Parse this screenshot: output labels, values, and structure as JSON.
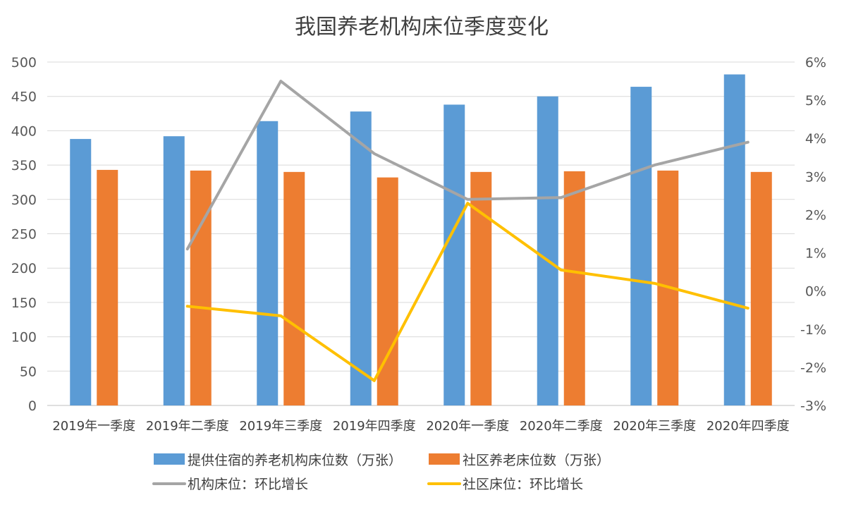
{
  "chart_data": {
    "type": "bar",
    "title": "我国养老机构床位季度变化",
    "categories": [
      "2019年一季度",
      "2019年二季度",
      "2019年三季度",
      "2019年四季度",
      "2020年一季度",
      "2020年二季度",
      "2020年三季度",
      "2020年四季度"
    ],
    "series": [
      {
        "name": "提供住宿的养老机构床位数（万张）",
        "type": "bar",
        "axis": "left",
        "color": "#5B9BD5",
        "values": [
          388,
          392,
          414,
          428,
          438,
          450,
          464,
          482
        ]
      },
      {
        "name": "社区养老床位数（万张）",
        "type": "bar",
        "axis": "left",
        "color": "#ED7D31",
        "values": [
          343,
          342,
          340,
          332,
          340,
          341,
          342,
          340
        ]
      },
      {
        "name": "机构床位：环比增长",
        "type": "line",
        "axis": "right",
        "color": "#A5A5A5",
        "values": [
          null,
          1.1,
          5.5,
          3.6,
          2.4,
          2.45,
          3.3,
          3.9
        ]
      },
      {
        "name": "社区床位：环比增长",
        "type": "line",
        "axis": "right",
        "color": "#FFC000",
        "values": [
          null,
          -0.4,
          -0.65,
          -2.35,
          2.3,
          0.55,
          0.2,
          -0.45
        ]
      }
    ],
    "y_left": {
      "min": 0,
      "max": 500,
      "step": 50,
      "ticks": [
        "0",
        "50",
        "100",
        "150",
        "200",
        "250",
        "300",
        "350",
        "400",
        "450",
        "500"
      ]
    },
    "y_right": {
      "min": -3,
      "max": 6,
      "step": 1,
      "ticks": [
        "-3%",
        "-2%",
        "-1%",
        "0%",
        "1%",
        "2%",
        "3%",
        "4%",
        "5%",
        "6%"
      ]
    },
    "grid": true,
    "legend_position": "bottom"
  }
}
